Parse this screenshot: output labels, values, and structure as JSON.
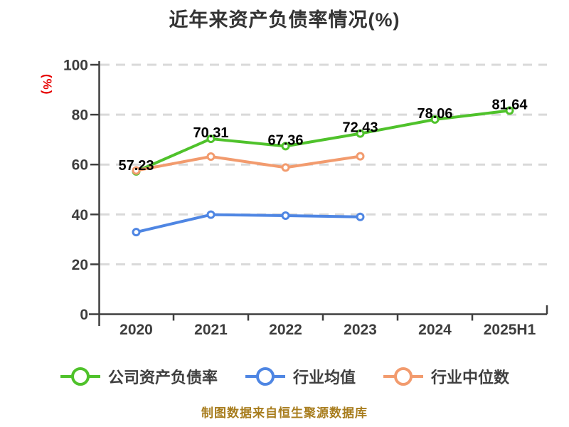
{
  "title": "近年来资产负债率情况(%)",
  "footer": "制图数据来自恒生聚源数据库",
  "axes": {
    "y_label": "(%)"
  },
  "colors": {
    "title_text": "#333333",
    "tick_label": "#3d3d3d",
    "axis_line": "#3f3f3f",
    "grid_line": "#d9d9d9",
    "y_axis_label": "#e60000",
    "data_label": "#000000",
    "legend_text": "#3f3f3f",
    "footer_text": "#a87d1e",
    "background": "#ffffff"
  },
  "chart_data": {
    "type": "line",
    "title": "近年来资产负债率情况(%)",
    "categories": [
      "2020",
      "2021",
      "2022",
      "2023",
      "2024",
      "2025H1"
    ],
    "ylim": [
      0,
      100
    ],
    "yticks": [
      0,
      20,
      40,
      60,
      80,
      100
    ],
    "grid": "horizontal-dashed",
    "legend_position": "bottom",
    "series": [
      {
        "name": "公司资产负债率",
        "color": "#4fc22b",
        "values": [
          57.23,
          70.31,
          67.36,
          72.43,
          78.06,
          81.64
        ],
        "show_labels": true,
        "labels": [
          "57.23",
          "70.31",
          "67.36",
          "72.43",
          "78.06",
          "81.64"
        ]
      },
      {
        "name": "行业均值",
        "color": "#4f86e3",
        "values": [
          32.9,
          39.9,
          39.5,
          39.0,
          null,
          null
        ],
        "show_labels": false
      },
      {
        "name": "行业中位数",
        "color": "#f29b6e",
        "values": [
          57.6,
          63.2,
          58.8,
          63.3,
          null,
          null
        ],
        "show_labels": false
      }
    ]
  }
}
